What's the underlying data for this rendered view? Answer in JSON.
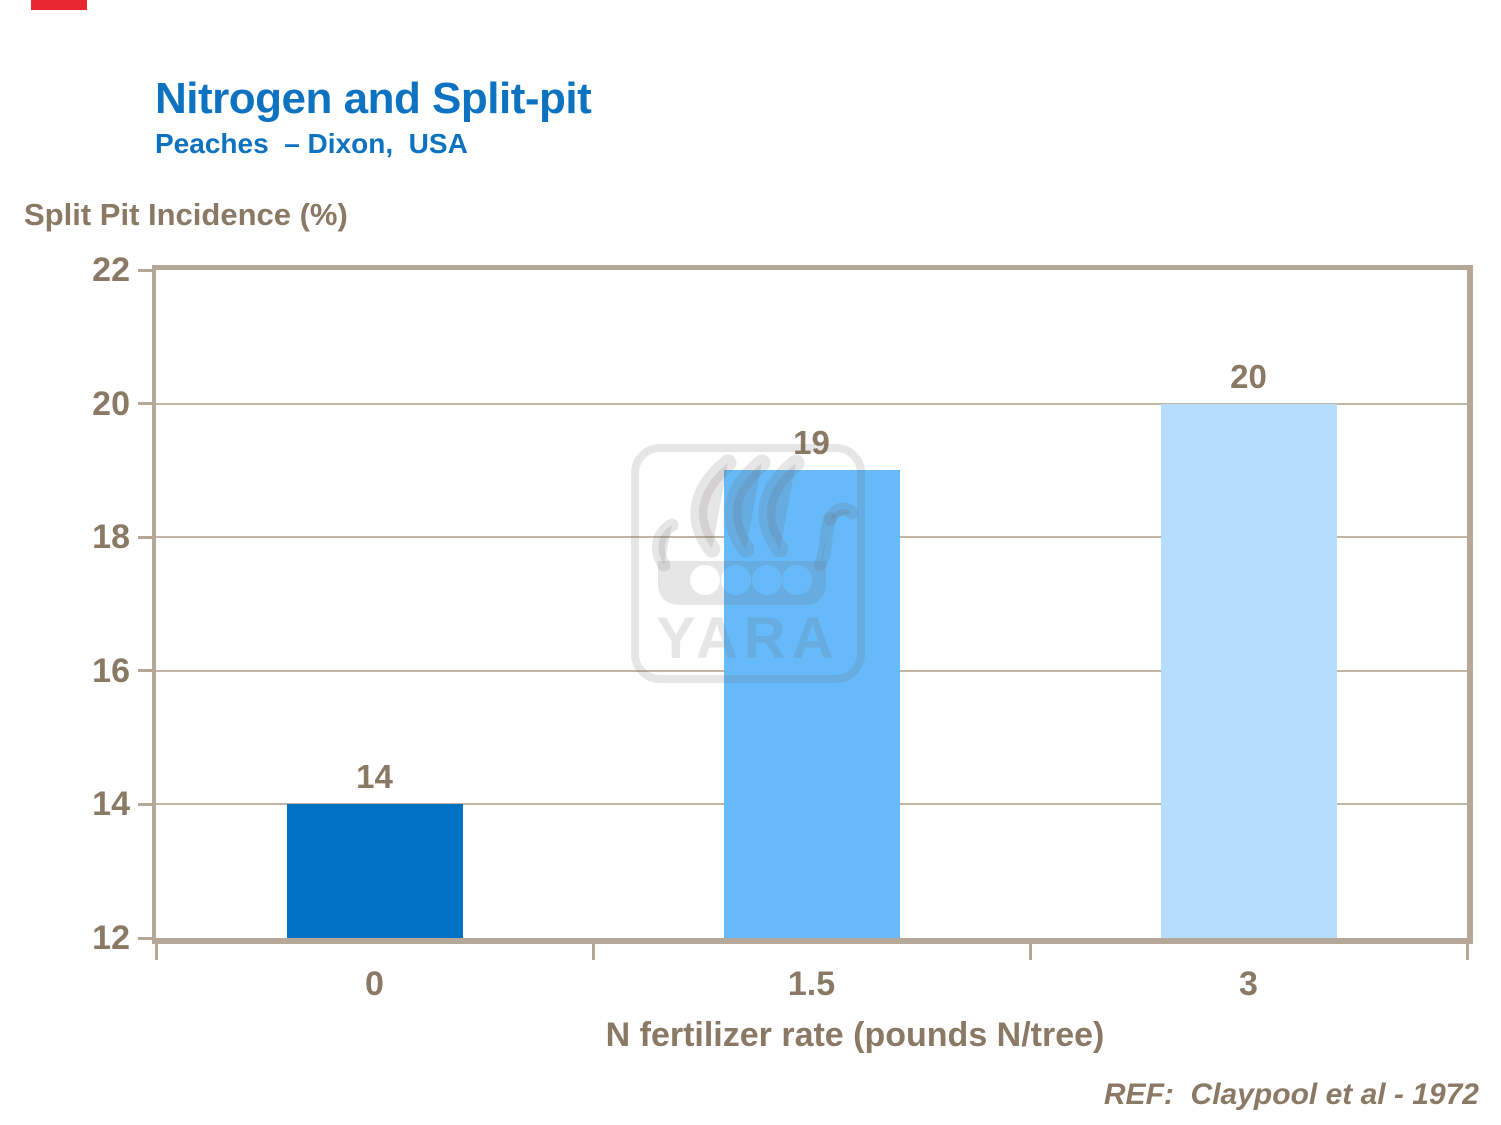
{
  "slide": {
    "title": "Nitrogen and Split-pit",
    "subtitle": "Peaches  – Dixon,  USA",
    "reference": "REF:  Claypool et al - 1972"
  },
  "chart_data": {
    "type": "bar",
    "categories": [
      "0",
      "1.5",
      "3"
    ],
    "values": [
      14,
      19,
      20
    ],
    "bar_labels": [
      "14",
      "19",
      "20"
    ],
    "title": "",
    "xlabel": "N fertilizer rate (pounds N/tree)",
    "ylabel": "Split Pit Incidence (%)",
    "ylim": [
      12,
      22
    ],
    "ytick_step": 2,
    "ytick_labels": [
      "12",
      "14",
      "16",
      "18",
      "20",
      "22"
    ],
    "grid": "horizontal-major",
    "legend": "none",
    "bar_colors": [
      "#0172c3",
      "#67baf9",
      "#b6ddfb"
    ]
  },
  "watermark": {
    "text": "YARA",
    "icon": "viking-ship-logo"
  },
  "colors": {
    "title_blue": "#0d73c0",
    "text_brown": "#8a7964",
    "axis_frame": "#b5a898",
    "gridline": "#c3b5a5",
    "red_marker": "#e8282e",
    "watermark_gray": "rgba(106,101,101,0.16)"
  }
}
